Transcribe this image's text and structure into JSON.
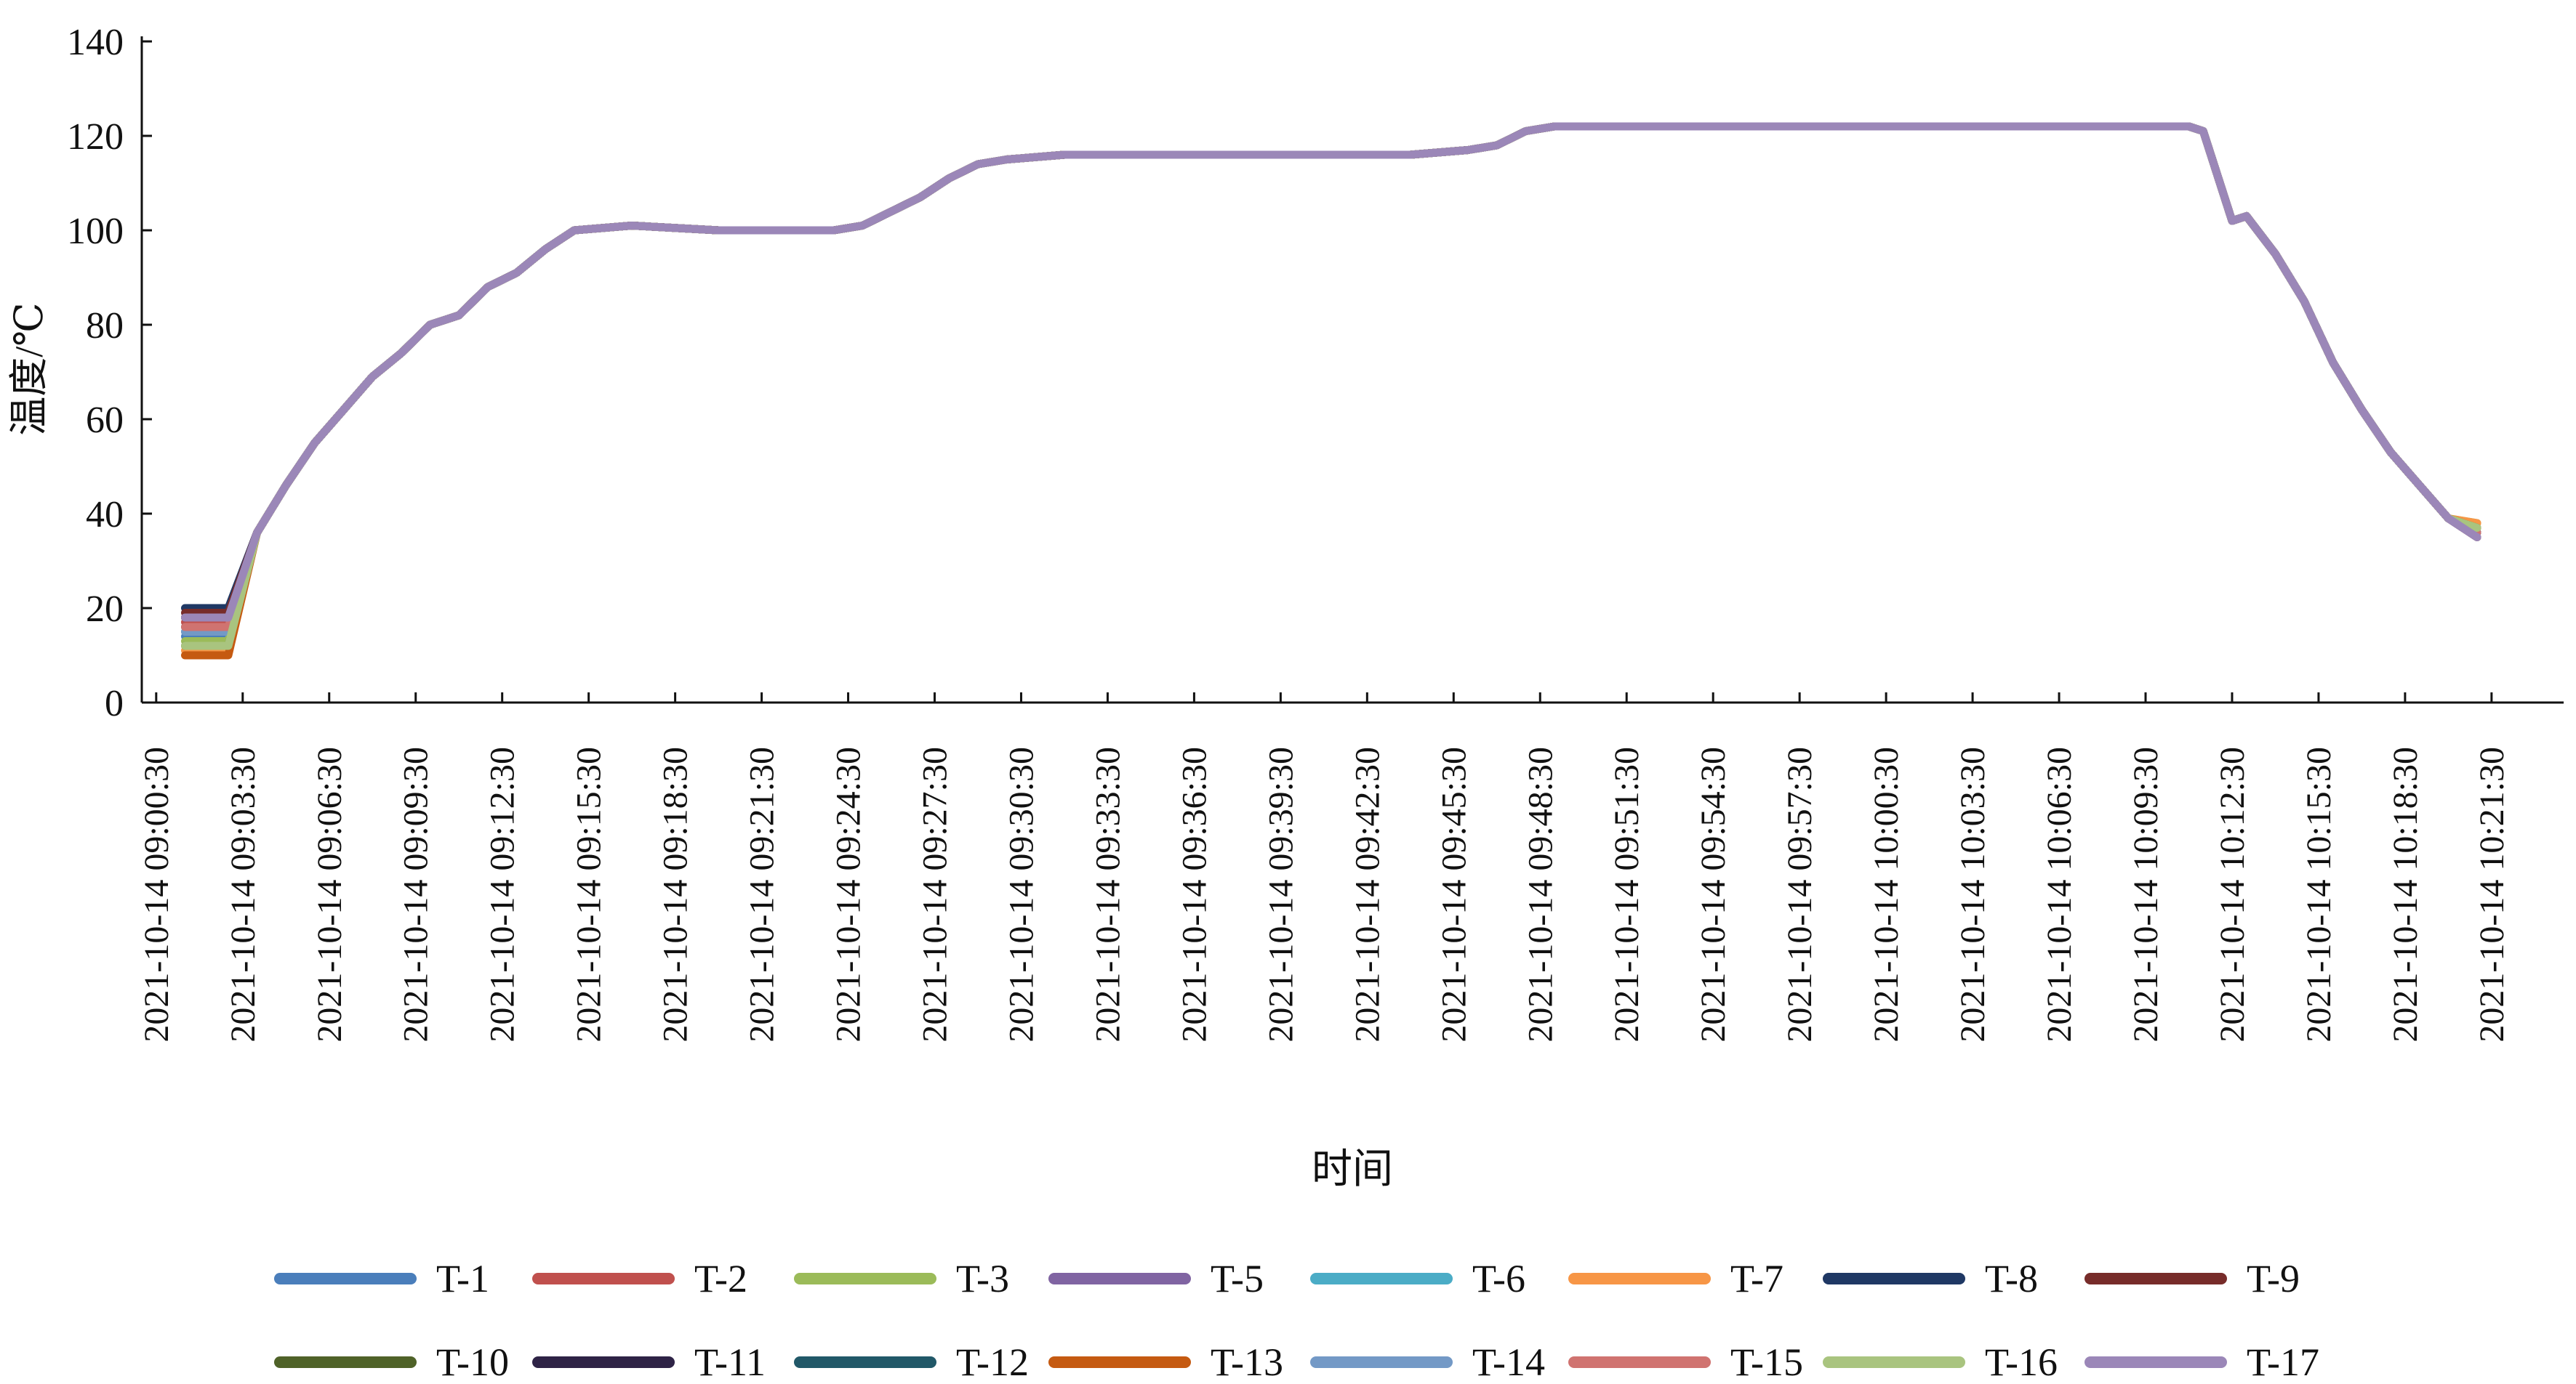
{
  "chart_data": {
    "type": "line",
    "title": "",
    "xlabel": "时间",
    "ylabel": "温度/℃",
    "ylim": [
      0,
      140
    ],
    "yticks": [
      0,
      20,
      40,
      60,
      80,
      100,
      120,
      140
    ],
    "xlim_minutes_from_0900": [
      0,
      84
    ],
    "x_ticks": [
      "2021-10-14 09:00:30",
      "2021-10-14 09:03:30",
      "2021-10-14 09:06:30",
      "2021-10-14 09:09:30",
      "2021-10-14 09:12:30",
      "2021-10-14 09:15:30",
      "2021-10-14 09:18:30",
      "2021-10-14 09:21:30",
      "2021-10-14 09:24:30",
      "2021-10-14 09:27:30",
      "2021-10-14 09:30:30",
      "2021-10-14 09:33:30",
      "2021-10-14 09:36:30",
      "2021-10-14 09:39:30",
      "2021-10-14 09:42:30",
      "2021-10-14 09:45:30",
      "2021-10-14 09:48:30",
      "2021-10-14 09:51:30",
      "2021-10-14 09:54:30",
      "2021-10-14 09:57:30",
      "2021-10-14 10:00:30",
      "2021-10-14 10:03:30",
      "2021-10-14 10:06:30",
      "2021-10-14 10:09:30",
      "2021-10-14 10:12:30",
      "2021-10-14 10:15:30",
      "2021-10-14 10:18:30",
      "2021-10-14 10:21:30"
    ],
    "grid": false,
    "legend_position": "bottom",
    "base_profile": {
      "x": [
        "09:01:30",
        "09:03:00",
        "09:04:00",
        "09:05:00",
        "09:06:00",
        "09:07:00",
        "09:08:00",
        "09:09:00",
        "09:10:00",
        "09:11:00",
        "09:12:00",
        "09:13:00",
        "09:14:00",
        "09:15:00",
        "09:17:00",
        "09:20:00",
        "09:23:00",
        "09:24:00",
        "09:25:00",
        "09:26:00",
        "09:27:00",
        "09:28:00",
        "09:29:00",
        "09:30:00",
        "09:32:00",
        "09:34:00",
        "09:36:00",
        "09:38:00",
        "09:40:00",
        "09:42:00",
        "09:44:00",
        "09:46:00",
        "09:47:00",
        "09:48:00",
        "09:49:00",
        "09:50:00",
        "09:52:00",
        "09:54:00",
        "09:56:00",
        "09:58:00",
        "10:00:00",
        "10:02:00",
        "10:04:00",
        "10:06:00",
        "10:08:00",
        "10:10:00",
        "10:11:00",
        "10:11:30",
        "10:12:30",
        "10:13:00",
        "10:14:00",
        "10:15:00",
        "10:16:00",
        "10:17:00",
        "10:18:00",
        "10:19:00",
        "10:20:00",
        "10:21:00"
      ],
      "y": [
        17,
        17,
        36,
        46,
        55,
        62,
        69,
        74,
        80,
        82,
        88,
        91,
        96,
        100,
        101,
        100,
        100,
        100,
        101,
        104,
        107,
        111,
        114,
        115,
        116,
        116,
        116,
        116,
        116,
        116,
        116,
        117,
        118,
        121,
        122,
        122,
        122,
        122,
        122,
        122,
        122,
        122,
        122,
        122,
        122,
        122,
        122,
        121,
        102,
        103,
        95,
        85,
        72,
        62,
        53,
        46,
        39,
        35
      ]
    },
    "series": [
      {
        "name": "T-1",
        "color": "#4a7ebb",
        "start_temp": 14,
        "end_temp": 37
      },
      {
        "name": "T-2",
        "color": "#c0504d",
        "start_temp": 17,
        "end_temp": 36
      },
      {
        "name": "T-3",
        "color": "#9bbb59",
        "start_temp": 13,
        "end_temp": 38
      },
      {
        "name": "T-5",
        "color": "#8064a2",
        "start_temp": 18,
        "end_temp": 35
      },
      {
        "name": "T-6",
        "color": "#4bacc6",
        "start_temp": 15,
        "end_temp": 36
      },
      {
        "name": "T-7",
        "color": "#f79646",
        "start_temp": 11,
        "end_temp": 38
      },
      {
        "name": "T-8",
        "color": "#1f3864",
        "start_temp": 20,
        "end_temp": 36
      },
      {
        "name": "T-9",
        "color": "#772c2a",
        "start_temp": 19,
        "end_temp": 35
      },
      {
        "name": "T-10",
        "color": "#4f6228",
        "start_temp": 12,
        "end_temp": 37
      },
      {
        "name": "T-11",
        "color": "#2e2346",
        "start_temp": 18,
        "end_temp": 36
      },
      {
        "name": "T-12",
        "color": "#215868",
        "start_temp": 16,
        "end_temp": 36
      },
      {
        "name": "T-13",
        "color": "#c55a11",
        "start_temp": 10,
        "end_temp": 37
      },
      {
        "name": "T-14",
        "color": "#7399c6",
        "start_temp": 15,
        "end_temp": 36
      },
      {
        "name": "T-15",
        "color": "#d07370",
        "start_temp": 16,
        "end_temp": 36
      },
      {
        "name": "T-16",
        "color": "#a9c47f",
        "start_temp": 12,
        "end_temp": 37
      },
      {
        "name": "T-17",
        "color": "#9b87b8",
        "start_temp": 18,
        "end_temp": 35
      }
    ]
  }
}
